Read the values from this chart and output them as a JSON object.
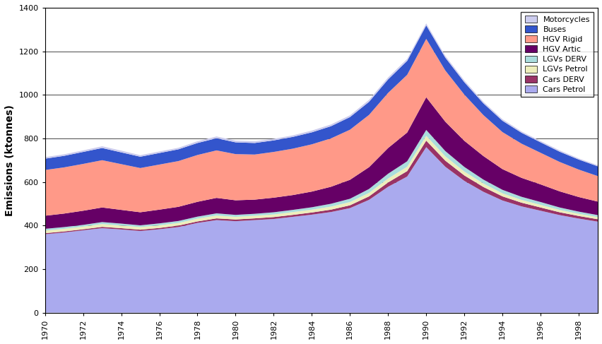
{
  "years": [
    1970,
    1971,
    1972,
    1973,
    1974,
    1975,
    1976,
    1977,
    1978,
    1979,
    1980,
    1981,
    1982,
    1983,
    1984,
    1985,
    1986,
    1987,
    1988,
    1989,
    1990,
    1991,
    1992,
    1993,
    1994,
    1995,
    1996,
    1997,
    1998,
    1999
  ],
  "Cars Petrol": [
    360,
    368,
    378,
    388,
    382,
    375,
    383,
    393,
    412,
    425,
    420,
    425,
    430,
    440,
    450,
    462,
    480,
    518,
    578,
    625,
    760,
    670,
    605,
    555,
    515,
    488,
    468,
    448,
    432,
    418
  ],
  "Cars DERV": [
    5,
    5,
    5,
    6,
    6,
    6,
    6,
    7,
    7,
    8,
    8,
    8,
    9,
    9,
    10,
    11,
    13,
    16,
    20,
    25,
    30,
    28,
    25,
    22,
    19,
    17,
    15,
    13,
    12,
    11
  ],
  "LGVs Petrol": [
    12,
    12,
    12,
    13,
    12,
    12,
    12,
    12,
    13,
    13,
    12,
    12,
    12,
    13,
    13,
    14,
    15,
    16,
    18,
    20,
    22,
    20,
    18,
    16,
    14,
    13,
    12,
    11,
    10,
    10
  ],
  "LGVs DERV": [
    8,
    8,
    8,
    9,
    9,
    8,
    9,
    9,
    9,
    10,
    9,
    9,
    10,
    10,
    11,
    13,
    15,
    18,
    22,
    25,
    27,
    24,
    21,
    18,
    16,
    14,
    13,
    11,
    10,
    9
  ],
  "HGV Artic": [
    60,
    62,
    65,
    67,
    63,
    60,
    63,
    65,
    68,
    71,
    67,
    65,
    67,
    68,
    72,
    78,
    87,
    100,
    118,
    132,
    150,
    135,
    120,
    108,
    95,
    87,
    81,
    74,
    67,
    62
  ],
  "HGV Rigid": [
    210,
    212,
    215,
    217,
    210,
    203,
    207,
    210,
    215,
    218,
    212,
    207,
    210,
    213,
    217,
    222,
    230,
    240,
    253,
    265,
    268,
    235,
    212,
    188,
    170,
    157,
    145,
    135,
    126,
    117
  ],
  "Buses": [
    52,
    53,
    55,
    56,
    54,
    52,
    53,
    54,
    55,
    56,
    54,
    53,
    53,
    54,
    55,
    56,
    58,
    60,
    62,
    64,
    62,
    59,
    57,
    54,
    52,
    50,
    48,
    47,
    46,
    45
  ],
  "Motorcycles": [
    7,
    7,
    7,
    8,
    8,
    7,
    7,
    7,
    8,
    8,
    8,
    8,
    7,
    7,
    8,
    8,
    8,
    9,
    9,
    9,
    9,
    8,
    8,
    7,
    7,
    6,
    6,
    6,
    5,
    5
  ],
  "colors": {
    "Cars Petrol": "#aaaaee",
    "Cars DERV": "#993366",
    "LGVs Petrol": "#eeeebb",
    "LGVs DERV": "#aadddd",
    "HGV Artic": "#660066",
    "HGV Rigid": "#ff9988",
    "Buses": "#3355cc",
    "Motorcycles": "#ccccee"
  },
  "ylabel": "Emissions (ktonnes)",
  "ylim": [
    0,
    1400
  ],
  "yticks": [
    0,
    200,
    400,
    600,
    800,
    1000,
    1200,
    1400
  ],
  "xticks": [
    1970,
    1972,
    1974,
    1976,
    1978,
    1980,
    1982,
    1984,
    1986,
    1988,
    1990,
    1992,
    1994,
    1996,
    1998
  ]
}
